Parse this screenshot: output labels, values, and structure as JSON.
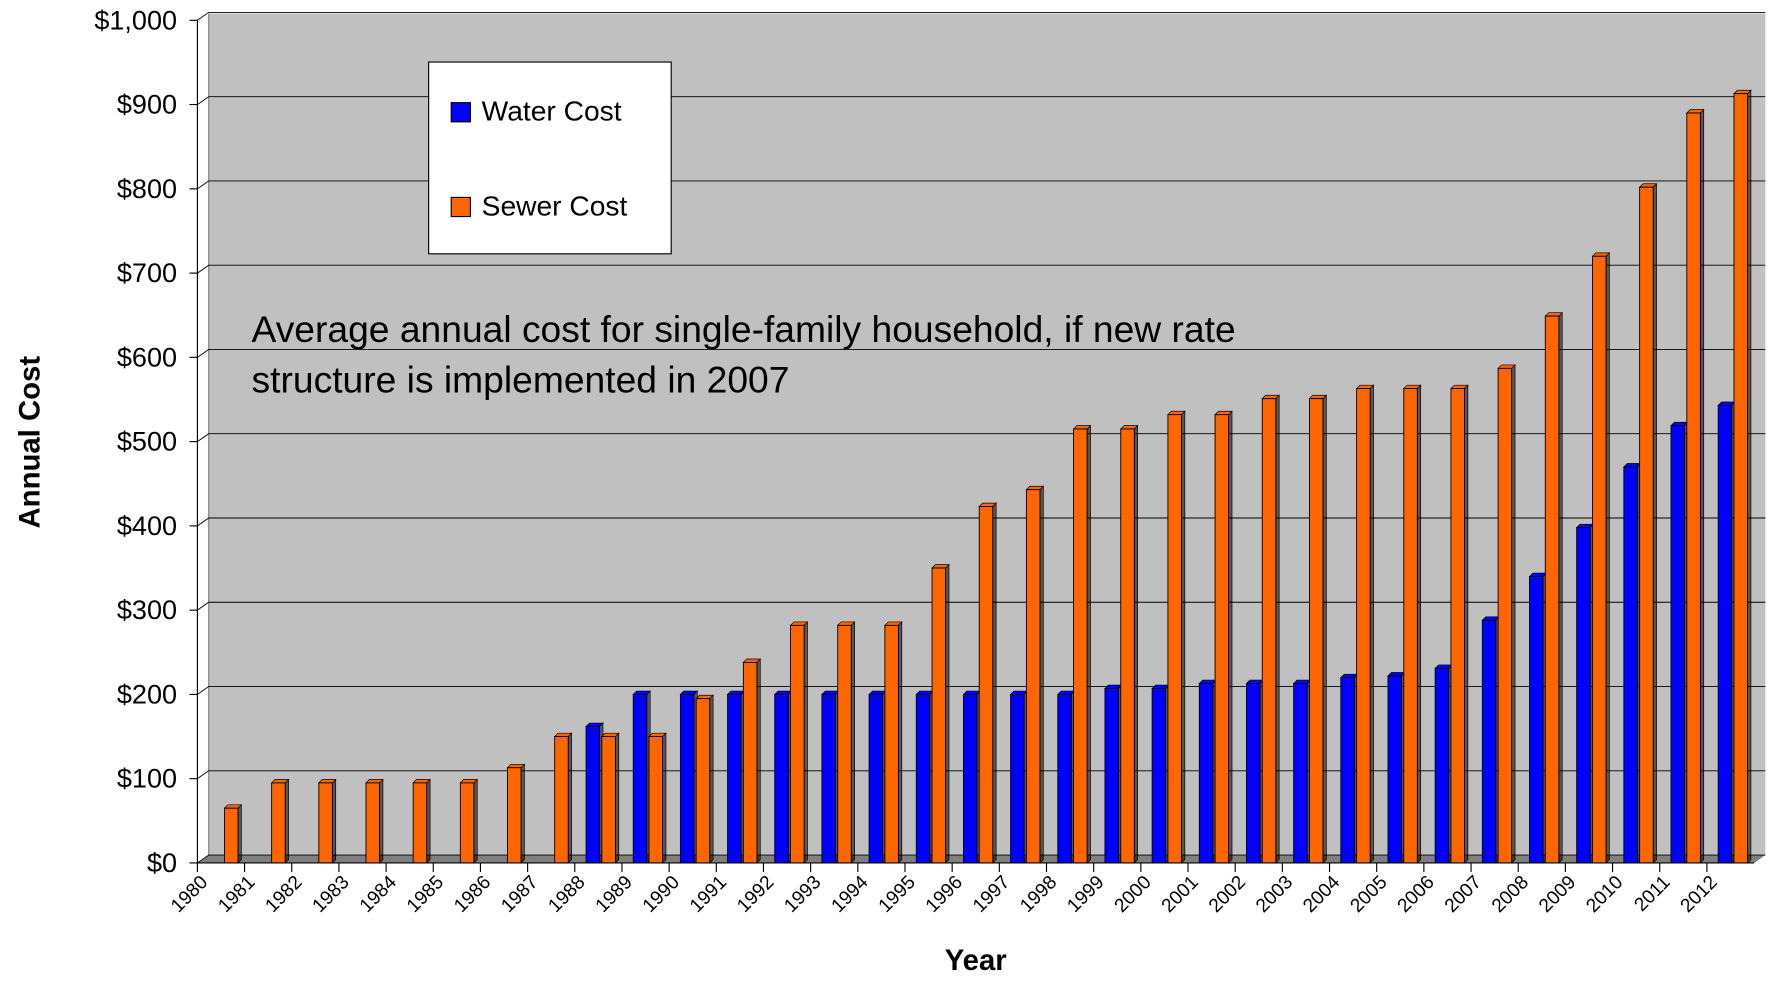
{
  "chart_data": {
    "type": "bar",
    "annotation": [
      "Average annual cost for single-family household, if new rate",
      "structure is implemented in 2007"
    ],
    "xlabel": "Year",
    "ylabel": "Annual Cost",
    "categories": [
      "1980",
      "1981",
      "1982",
      "1983",
      "1984",
      "1985",
      "1986",
      "1987",
      "1988",
      "1989",
      "1990",
      "1991",
      "1992",
      "1993",
      "1994",
      "1995",
      "1996",
      "1997",
      "1998",
      "1999",
      "2000",
      "2001",
      "2002",
      "2003",
      "2004",
      "2005",
      "2006",
      "2007",
      "2008",
      "2009",
      "2010",
      "2011",
      "2012"
    ],
    "series": [
      {
        "name": "Water Cost",
        "color": "#0000ff",
        "values": [
          null,
          null,
          null,
          null,
          null,
          null,
          null,
          null,
          162,
          200,
          200,
          200,
          200,
          200,
          200,
          200,
          200,
          200,
          200,
          207,
          207,
          213,
          213,
          213,
          220,
          222,
          231,
          288,
          340,
          398,
          470,
          519,
          543
        ]
      },
      {
        "name": "Sewer Cost",
        "color": "#ff6600",
        "values": [
          65,
          95,
          95,
          95,
          95,
          95,
          113,
          150,
          150,
          150,
          195,
          238,
          282,
          282,
          282,
          350,
          423,
          443,
          515,
          515,
          532,
          532,
          551,
          551,
          563,
          563,
          563,
          587,
          649,
          720,
          802,
          890,
          913
        ]
      }
    ],
    "ylim": [
      0,
      1000
    ],
    "yticks": [
      {
        "value": 0,
        "label": "$0"
      },
      {
        "value": 100,
        "label": "$100"
      },
      {
        "value": 200,
        "label": "$200"
      },
      {
        "value": 300,
        "label": "$300"
      },
      {
        "value": 400,
        "label": "$400"
      },
      {
        "value": 500,
        "label": "$500"
      },
      {
        "value": 600,
        "label": "$600"
      },
      {
        "value": 700,
        "label": "$700"
      },
      {
        "value": 800,
        "label": "$800"
      },
      {
        "value": 900,
        "label": "$900"
      },
      {
        "value": 1000,
        "label": "$1,000"
      }
    ],
    "grid": true,
    "legend": "upper left"
  }
}
